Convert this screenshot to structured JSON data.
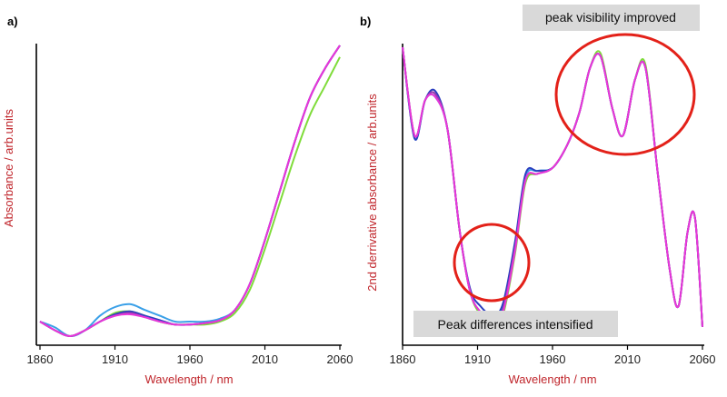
{
  "chart_data": [
    {
      "type": "line",
      "panel_label": "a)",
      "xlabel": "Wavelength / nm",
      "ylabel": "Absorbance / arb.units",
      "xlim": [
        1860,
        2060
      ],
      "ylim": [
        0,
        1
      ],
      "xticks": [
        1860,
        1910,
        1960,
        2010,
        2060
      ],
      "y_tick_labels_shown": false,
      "grid": false,
      "x": [
        1860,
        1870,
        1880,
        1890,
        1900,
        1910,
        1920,
        1930,
        1940,
        1950,
        1960,
        1970,
        1980,
        1990,
        2000,
        2010,
        2020,
        2030,
        2040,
        2050,
        2060
      ],
      "series": [
        {
          "color": "#3aa0e8",
          "values": [
            0.05,
            0.03,
            0.0,
            0.02,
            0.07,
            0.1,
            0.11,
            0.09,
            0.07,
            0.05,
            0.05,
            0.05,
            0.06,
            0.09,
            0.18,
            0.33,
            0.5,
            0.67,
            0.82,
            0.92,
            1.0
          ]
        },
        {
          "color": "#7fdc3a",
          "values": [
            0.05,
            0.02,
            0.0,
            0.02,
            0.05,
            0.08,
            0.085,
            0.07,
            0.05,
            0.04,
            0.04,
            0.04,
            0.05,
            0.08,
            0.16,
            0.3,
            0.46,
            0.62,
            0.76,
            0.86,
            0.96
          ]
        },
        {
          "color": "#2b3fbf",
          "values": [
            0.05,
            0.02,
            0.0,
            0.02,
            0.05,
            0.075,
            0.085,
            0.07,
            0.055,
            0.04,
            0.04,
            0.045,
            0.055,
            0.09,
            0.18,
            0.33,
            0.5,
            0.67,
            0.82,
            0.92,
            1.0
          ]
        },
        {
          "color": "#9b39b5",
          "values": [
            0.05,
            0.02,
            0.0,
            0.02,
            0.05,
            0.07,
            0.08,
            0.065,
            0.05,
            0.04,
            0.04,
            0.045,
            0.055,
            0.09,
            0.18,
            0.33,
            0.5,
            0.67,
            0.82,
            0.92,
            1.0
          ]
        },
        {
          "color": "#e836d9",
          "values": [
            0.05,
            0.02,
            0.0,
            0.02,
            0.05,
            0.07,
            0.075,
            0.065,
            0.05,
            0.04,
            0.04,
            0.045,
            0.055,
            0.09,
            0.18,
            0.33,
            0.5,
            0.67,
            0.82,
            0.92,
            1.0
          ]
        }
      ]
    },
    {
      "type": "line",
      "panel_label": "b)",
      "xlabel": "Wavelength / nm",
      "ylabel": "2nd derrivative absorbance / arb.units",
      "xlim": [
        1860,
        2060
      ],
      "ylim": [
        0,
        1
      ],
      "xticks": [
        1860,
        1910,
        1960,
        2010,
        2060
      ],
      "y_tick_labels_shown": false,
      "grid": false,
      "annotations": [
        {
          "text": "peak visibility improved",
          "target": "peaks near 1990–2025 nm"
        },
        {
          "text": "Peak differences intensified",
          "target": "minimum near 1920 nm"
        }
      ],
      "x": [
        1860,
        1868,
        1875,
        1882,
        1890,
        1898,
        1905,
        1912,
        1920,
        1927,
        1935,
        1942,
        1950,
        1960,
        1970,
        1978,
        1985,
        1992,
        2000,
        2007,
        2015,
        2022,
        2030,
        2038,
        2044,
        2050,
        2055,
        2060
      ],
      "series": [
        {
          "color": "#3aa0e8",
          "values": [
            1.0,
            0.69,
            0.82,
            0.83,
            0.72,
            0.38,
            0.17,
            0.1,
            0.08,
            0.12,
            0.33,
            0.56,
            0.58,
            0.59,
            0.67,
            0.78,
            0.93,
            0.97,
            0.79,
            0.7,
            0.89,
            0.93,
            0.58,
            0.25,
            0.12,
            0.37,
            0.42,
            0.05
          ]
        },
        {
          "color": "#7fdc3a",
          "values": [
            1.0,
            0.7,
            0.82,
            0.84,
            0.72,
            0.38,
            0.17,
            0.09,
            0.05,
            0.09,
            0.3,
            0.54,
            0.57,
            0.59,
            0.67,
            0.78,
            0.93,
            0.98,
            0.79,
            0.7,
            0.89,
            0.94,
            0.58,
            0.25,
            0.12,
            0.37,
            0.42,
            0.05
          ]
        },
        {
          "color": "#2b3fbf",
          "values": [
            1.0,
            0.69,
            0.82,
            0.85,
            0.72,
            0.38,
            0.18,
            0.12,
            0.09,
            0.13,
            0.34,
            0.57,
            0.58,
            0.59,
            0.67,
            0.78,
            0.93,
            0.97,
            0.79,
            0.7,
            0.89,
            0.93,
            0.58,
            0.25,
            0.12,
            0.37,
            0.42,
            0.05
          ]
        },
        {
          "color": "#9b39b5",
          "values": [
            1.0,
            0.7,
            0.82,
            0.84,
            0.72,
            0.38,
            0.17,
            0.1,
            0.07,
            0.11,
            0.32,
            0.55,
            0.57,
            0.59,
            0.67,
            0.78,
            0.93,
            0.97,
            0.79,
            0.7,
            0.89,
            0.93,
            0.58,
            0.25,
            0.12,
            0.37,
            0.42,
            0.05
          ]
        },
        {
          "color": "#e836d9",
          "values": [
            1.0,
            0.7,
            0.82,
            0.83,
            0.72,
            0.38,
            0.17,
            0.1,
            0.06,
            0.1,
            0.31,
            0.55,
            0.57,
            0.59,
            0.67,
            0.78,
            0.93,
            0.97,
            0.79,
            0.7,
            0.89,
            0.93,
            0.58,
            0.25,
            0.12,
            0.37,
            0.42,
            0.05
          ]
        }
      ]
    }
  ]
}
